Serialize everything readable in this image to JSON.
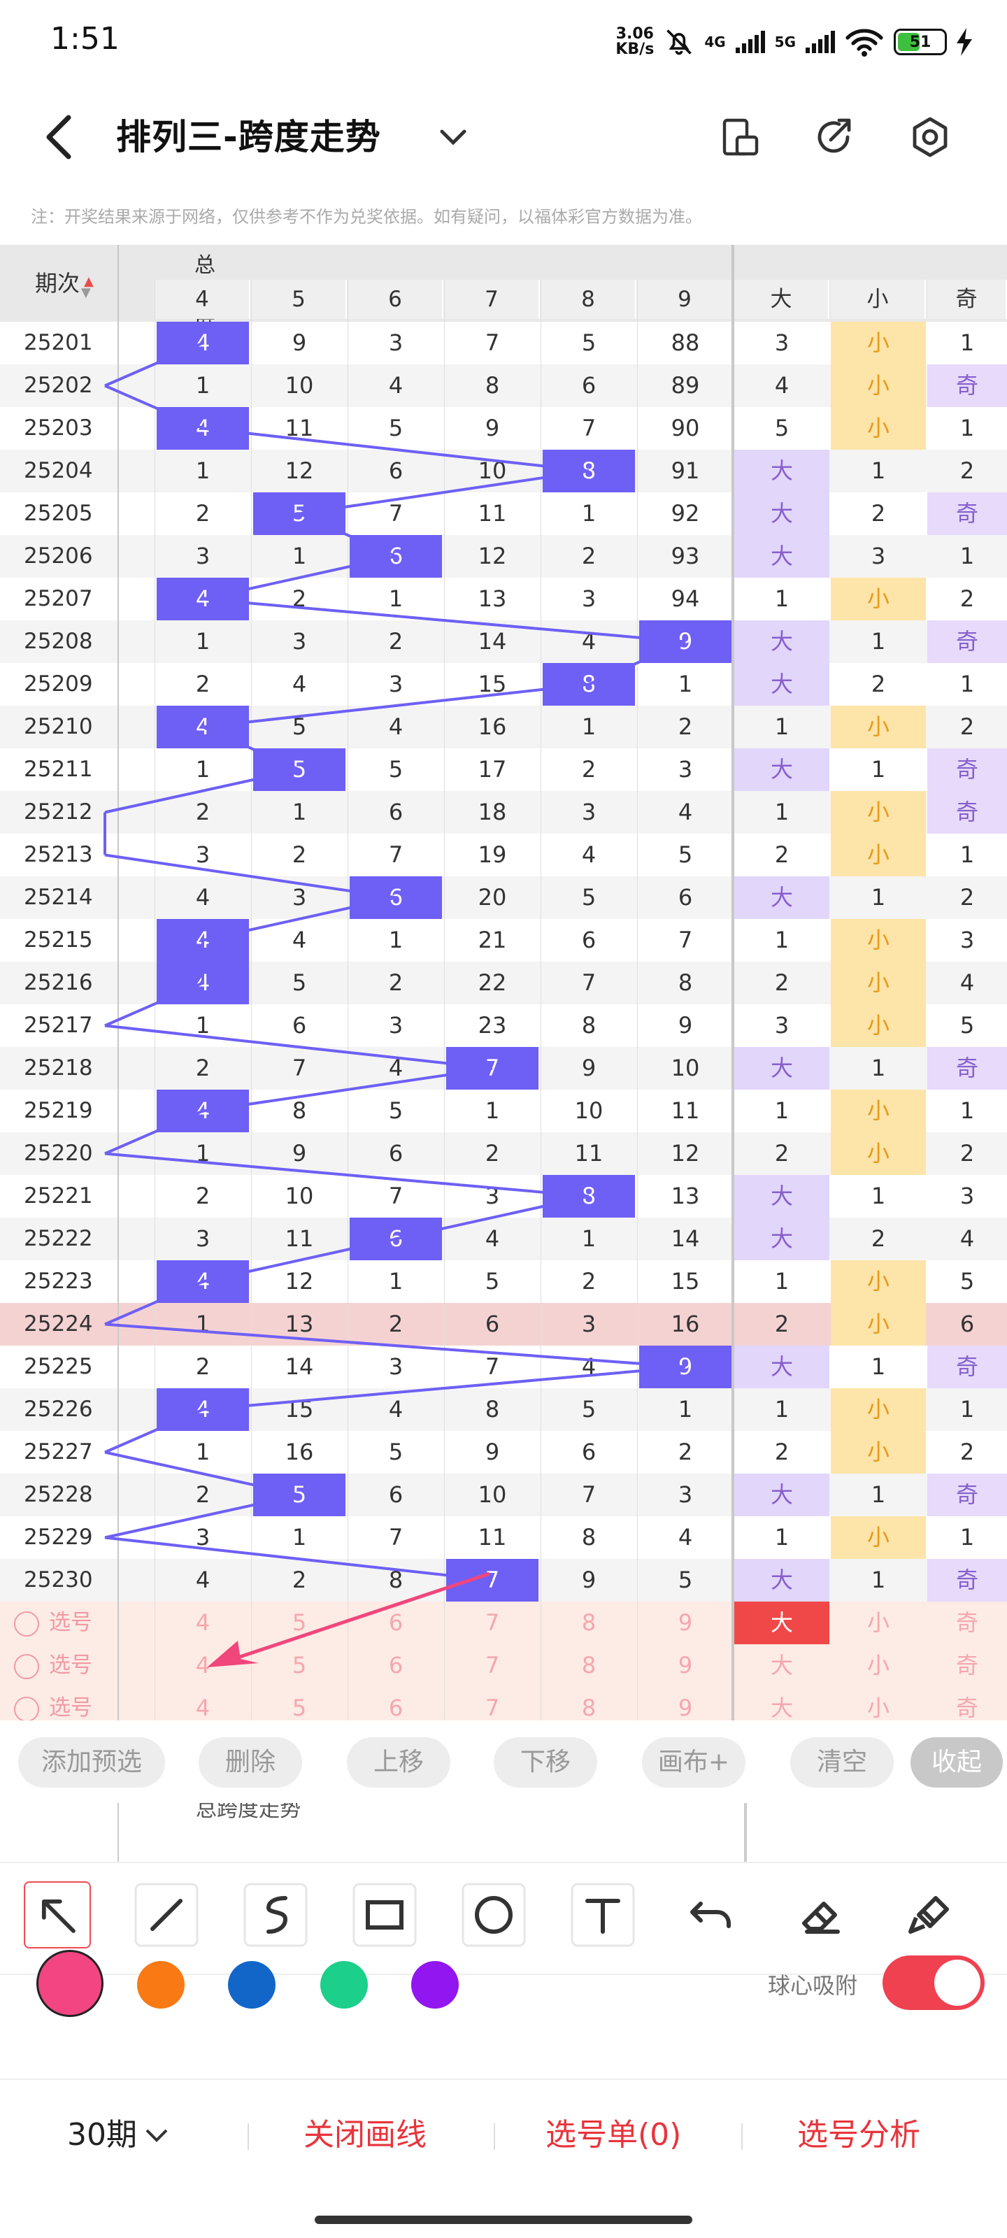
{
  "status_bar": {
    "time": "1:51",
    "net_speed_value": "3.06",
    "net_speed_unit": "KB/s",
    "net1": "4G",
    "net2": "5G",
    "battery": "51"
  },
  "header": {
    "title": "排列三-跨度走势"
  },
  "note": "注：开奖结果来源于网络，仅供参考不作为兑奖依据。如有疑问，以福体彩官方数据为准。",
  "table": {
    "period_header": "期次",
    "group_header": "总跨度走势",
    "span_columns": [
      "4",
      "5",
      "6",
      "7",
      "8",
      "9"
    ],
    "size_header_big": "大",
    "size_header_small": "小",
    "odd_header": "奇",
    "rows": [
      {
        "p": "25201",
        "c": [
          "4",
          "9",
          "3",
          "7",
          "5",
          "88"
        ],
        "hit": 0,
        "b": "3",
        "s": "小",
        "o": "1",
        "bg": "big0",
        "sm": true,
        "od": false
      },
      {
        "p": "25202",
        "c": [
          "1",
          "10",
          "4",
          "8",
          "6",
          "89"
        ],
        "hit": -1,
        "b": "4",
        "s": "小",
        "o": "奇",
        "sm": true,
        "od": true
      },
      {
        "p": "25203",
        "c": [
          "4",
          "11",
          "5",
          "9",
          "7",
          "90"
        ],
        "hit": 0,
        "b": "5",
        "s": "小",
        "o": "1",
        "sm": true,
        "od": false
      },
      {
        "p": "25204",
        "c": [
          "1",
          "12",
          "6",
          "10",
          "8",
          "91"
        ],
        "hit": 4,
        "b": "大",
        "s": "1",
        "o": "2",
        "bg": true,
        "sm": false,
        "od": false
      },
      {
        "p": "25205",
        "c": [
          "2",
          "5",
          "7",
          "11",
          "1",
          "92"
        ],
        "hit": 1,
        "b": "大",
        "s": "2",
        "o": "奇",
        "bg": true,
        "sm": false,
        "od": true
      },
      {
        "p": "25206",
        "c": [
          "3",
          "1",
          "6",
          "12",
          "2",
          "93"
        ],
        "hit": 2,
        "b": "大",
        "s": "3",
        "o": "1",
        "bg": true,
        "sm": false,
        "od": false
      },
      {
        "p": "25207",
        "c": [
          "4",
          "2",
          "1",
          "13",
          "3",
          "94"
        ],
        "hit": 0,
        "b": "1",
        "s": "小",
        "o": "2",
        "sm": true,
        "od": false
      },
      {
        "p": "25208",
        "c": [
          "1",
          "3",
          "2",
          "14",
          "4",
          "9"
        ],
        "hit": 5,
        "b": "大",
        "s": "1",
        "o": "奇",
        "bg": true,
        "sm": false,
        "od": true
      },
      {
        "p": "25209",
        "c": [
          "2",
          "4",
          "3",
          "15",
          "8",
          "1"
        ],
        "hit": 4,
        "b": "大",
        "s": "2",
        "o": "1",
        "bg": true,
        "sm": false,
        "od": false
      },
      {
        "p": "25210",
        "c": [
          "4",
          "5",
          "4",
          "16",
          "1",
          "2"
        ],
        "hit": 0,
        "b": "1",
        "s": "小",
        "o": "2",
        "sm": true,
        "od": false
      },
      {
        "p": "25211",
        "c": [
          "1",
          "5",
          "5",
          "17",
          "2",
          "3"
        ],
        "hit": 1,
        "b": "大",
        "s": "1",
        "o": "奇",
        "bg": true,
        "sm": false,
        "od": true
      },
      {
        "p": "25212",
        "c": [
          "2",
          "1",
          "6",
          "18",
          "3",
          "4"
        ],
        "hit": -1,
        "b": "1",
        "s": "小",
        "o": "奇",
        "sm": true,
        "od": true
      },
      {
        "p": "25213",
        "c": [
          "3",
          "2",
          "7",
          "19",
          "4",
          "5"
        ],
        "hit": -1,
        "b": "2",
        "s": "小",
        "o": "1",
        "sm": true,
        "od": false
      },
      {
        "p": "25214",
        "c": [
          "4",
          "3",
          "6",
          "20",
          "5",
          "6"
        ],
        "hit": 2,
        "b": "大",
        "s": "1",
        "o": "2",
        "bg": true,
        "sm": false,
        "od": false
      },
      {
        "p": "25215",
        "c": [
          "4",
          "4",
          "1",
          "21",
          "6",
          "7"
        ],
        "hit": 0,
        "b": "1",
        "s": "小",
        "o": "3",
        "sm": true,
        "od": false
      },
      {
        "p": "25216",
        "c": [
          "4",
          "5",
          "2",
          "22",
          "7",
          "8"
        ],
        "hit": 0,
        "b": "2",
        "s": "小",
        "o": "4",
        "sm": true,
        "od": false
      },
      {
        "p": "25217",
        "c": [
          "1",
          "6",
          "3",
          "23",
          "8",
          "9"
        ],
        "hit": -1,
        "b": "3",
        "s": "小",
        "o": "5",
        "sm": true,
        "od": false
      },
      {
        "p": "25218",
        "c": [
          "2",
          "7",
          "4",
          "7",
          "9",
          "10"
        ],
        "hit": 3,
        "b": "大",
        "s": "1",
        "o": "奇",
        "bg": true,
        "sm": false,
        "od": true
      },
      {
        "p": "25219",
        "c": [
          "4",
          "8",
          "5",
          "1",
          "10",
          "11"
        ],
        "hit": 0,
        "b": "1",
        "s": "小",
        "o": "1",
        "sm": true,
        "od": false
      },
      {
        "p": "25220",
        "c": [
          "1",
          "9",
          "6",
          "2",
          "11",
          "12"
        ],
        "hit": -1,
        "b": "2",
        "s": "小",
        "o": "2",
        "sm": true,
        "od": false
      },
      {
        "p": "25221",
        "c": [
          "2",
          "10",
          "7",
          "3",
          "8",
          "13"
        ],
        "hit": 4,
        "b": "大",
        "s": "1",
        "o": "3",
        "bg": true,
        "sm": false,
        "od": false
      },
      {
        "p": "25222",
        "c": [
          "3",
          "11",
          "6",
          "4",
          "1",
          "14"
        ],
        "hit": 2,
        "b": "大",
        "s": "2",
        "o": "4",
        "bg": true,
        "sm": false,
        "od": false
      },
      {
        "p": "25223",
        "c": [
          "4",
          "12",
          "1",
          "5",
          "2",
          "15"
        ],
        "hit": 0,
        "b": "1",
        "s": "小",
        "o": "5",
        "sm": true,
        "od": false
      },
      {
        "p": "25224",
        "c": [
          "1",
          "13",
          "2",
          "6",
          "3",
          "16"
        ],
        "hit": -1,
        "b": "2",
        "s": "小",
        "o": "6",
        "sm": true,
        "od": false,
        "hl": true
      },
      {
        "p": "25225",
        "c": [
          "2",
          "14",
          "3",
          "7",
          "4",
          "9"
        ],
        "hit": 5,
        "b": "大",
        "s": "1",
        "o": "奇",
        "bg": true,
        "sm": false,
        "od": true
      },
      {
        "p": "25226",
        "c": [
          "4",
          "15",
          "4",
          "8",
          "5",
          "1"
        ],
        "hit": 0,
        "b": "1",
        "s": "小",
        "o": "1",
        "sm": true,
        "od": false
      },
      {
        "p": "25227",
        "c": [
          "1",
          "16",
          "5",
          "9",
          "6",
          "2"
        ],
        "hit": -1,
        "b": "2",
        "s": "小",
        "o": "2",
        "sm": true,
        "od": false
      },
      {
        "p": "25228",
        "c": [
          "2",
          "5",
          "6",
          "10",
          "7",
          "3"
        ],
        "hit": 1,
        "b": "大",
        "s": "1",
        "o": "奇",
        "bg": true,
        "sm": false,
        "od": true
      },
      {
        "p": "25229",
        "c": [
          "3",
          "1",
          "7",
          "11",
          "8",
          "4"
        ],
        "hit": -1,
        "b": "1",
        "s": "小",
        "o": "1",
        "sm": true,
        "od": false
      },
      {
        "p": "25230",
        "c": [
          "4",
          "2",
          "8",
          "7",
          "9",
          "5"
        ],
        "hit": 3,
        "b": "大",
        "s": "1",
        "o": "奇",
        "bg": true,
        "sm": false,
        "od": true
      }
    ],
    "select_label": "选号",
    "select_rows": [
      {
        "c": [
          "4",
          "5",
          "6",
          "7",
          "8",
          "9"
        ],
        "b": "大",
        "s": "小",
        "o": "奇",
        "bsel": true
      },
      {
        "c": [
          "4",
          "5",
          "6",
          "7",
          "8",
          "9"
        ],
        "b": "大",
        "s": "小",
        "o": "奇",
        "bsel": false
      },
      {
        "c": [
          "4",
          "5",
          "6",
          "7",
          "8",
          "9"
        ],
        "b": "大",
        "s": "小",
        "o": "奇",
        "bsel": false
      }
    ],
    "peek_header": "总跨度走势"
  },
  "actions": {
    "add": "添加预选",
    "delete": "删除",
    "up": "上移",
    "down": "下移",
    "canvas": "画布+",
    "clear": "清空",
    "collapse": "收起"
  },
  "draw_tools": [
    "arrow-tool",
    "line-tool",
    "curve-tool",
    "rectangle-tool",
    "circle-tool",
    "text-tool",
    "undo-tool",
    "eraser-tool",
    "clear-draw-tool"
  ],
  "palette": [
    {
      "name": "pink",
      "color": "#f24582",
      "selected": true
    },
    {
      "name": "orange",
      "color": "#f97a14",
      "selected": false
    },
    {
      "name": "blue",
      "color": "#1266c8",
      "selected": false
    },
    {
      "name": "green",
      "color": "#1ccf8a",
      "selected": false
    },
    {
      "name": "purple",
      "color": "#9216ef",
      "selected": false
    }
  ],
  "snap_label": "球心吸附",
  "snap_on": true,
  "bottom": {
    "periods": "30期",
    "close_lines": "关闭画线",
    "ticket": "选号单(0)",
    "analysis": "选号分析"
  },
  "colors": {
    "hit": "#6e5ff5",
    "accent_red": "#e8343c",
    "line": "#6e5ff5",
    "arrow": "#f0467c"
  }
}
